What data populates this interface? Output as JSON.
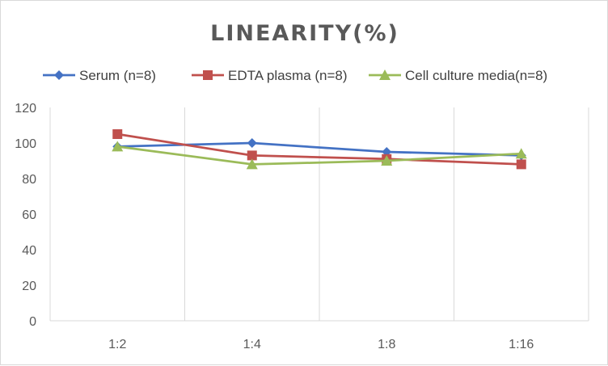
{
  "chart_data": {
    "type": "line",
    "title": "LINEARITY(%)",
    "xlabel": "",
    "ylabel": "",
    "categories": [
      "1:2",
      "1:4",
      "1:8",
      "1:16"
    ],
    "ylim": [
      0,
      120
    ],
    "yticks": [
      0,
      20,
      40,
      60,
      80,
      100,
      120
    ],
    "grid": "vertical",
    "legend_position": "top",
    "series": [
      {
        "name": "Serum (n=8)",
        "values": [
          98,
          100,
          95,
          93
        ],
        "color": "#4472C4",
        "marker": "diamond"
      },
      {
        "name": "EDTA plasma (n=8)",
        "values": [
          105,
          93,
          91,
          88
        ],
        "color": "#C0504D",
        "marker": "square"
      },
      {
        "name": "Cell culture media(n=8)",
        "values": [
          98,
          88,
          90,
          94
        ],
        "color": "#9BBB59",
        "marker": "triangle"
      }
    ]
  }
}
